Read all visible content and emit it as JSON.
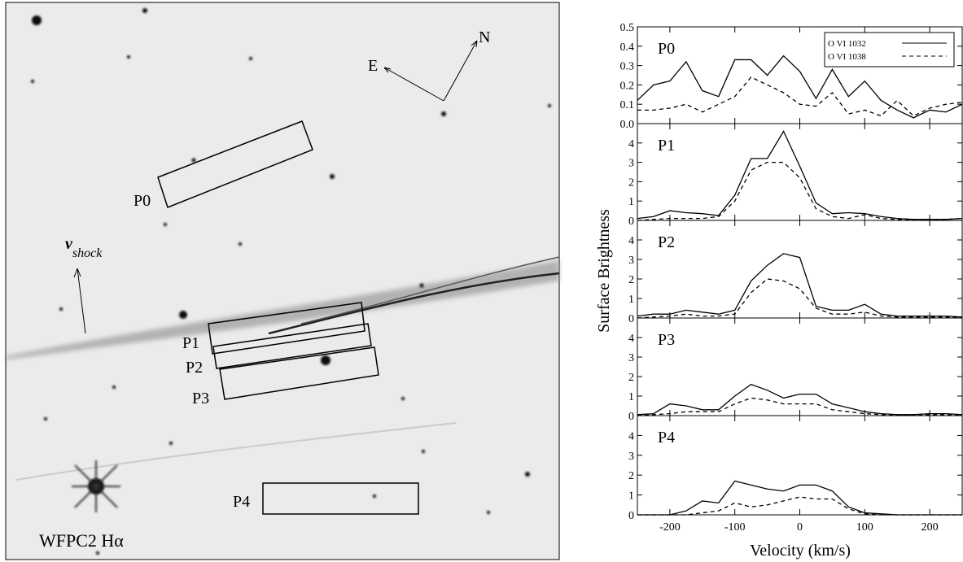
{
  "image": {
    "title": "WFPC2 Hα",
    "compass": [
      "E",
      "N"
    ],
    "shock_label": {
      "symbol": "v",
      "subscript": "shock"
    },
    "regions": [
      "P0",
      "P1",
      "P2",
      "P3",
      "P4"
    ]
  },
  "figure": {
    "ylabel": "Surface Brightness",
    "xlabel": "Velocity (km/s)"
  },
  "chart_data": [
    {
      "type": "line",
      "title": "P0",
      "legend": "upper right",
      "xlim": [
        -250,
        250
      ],
      "xticks": [
        -200,
        -100,
        0,
        100,
        200
      ],
      "ylim": [
        0,
        0.5
      ],
      "yticks": [
        {
          "value": 0,
          "label": "0.0"
        },
        0.1,
        0.2,
        0.3,
        0.4,
        0.5
      ],
      "x": [
        -250,
        -225,
        -200,
        -175,
        -150,
        -125,
        -100,
        -75,
        -50,
        -25,
        0,
        25,
        50,
        75,
        100,
        125,
        150,
        175,
        200,
        225,
        250
      ],
      "series": [
        {
          "name": "O VI 1032",
          "color": "#000000",
          "dash": "solid",
          "values": [
            0.12,
            0.2,
            0.22,
            0.32,
            0.17,
            0.14,
            0.33,
            0.33,
            0.25,
            0.35,
            0.27,
            0.13,
            0.28,
            0.14,
            0.22,
            0.12,
            0.07,
            0.03,
            0.07,
            0.06,
            0.1
          ]
        },
        {
          "name": "O VI 1038",
          "color": "#000000",
          "dash": "dashed",
          "values": [
            0.07,
            0.07,
            0.08,
            0.1,
            0.06,
            0.1,
            0.14,
            0.24,
            0.2,
            0.16,
            0.1,
            0.09,
            0.16,
            0.05,
            0.07,
            0.04,
            0.12,
            0.04,
            0.08,
            0.1,
            0.11
          ]
        }
      ]
    },
    {
      "type": "line",
      "title": "P1",
      "xlim": [
        -250,
        250
      ],
      "xticks": [
        -200,
        -100,
        0,
        100,
        200
      ],
      "ylim": [
        0,
        5
      ],
      "yticks": [
        0,
        1,
        2,
        3,
        4
      ],
      "x": [
        -250,
        -225,
        -200,
        -175,
        -150,
        -125,
        -100,
        -75,
        -50,
        -25,
        0,
        25,
        50,
        75,
        100,
        125,
        150,
        175,
        200,
        225,
        250
      ],
      "series": [
        {
          "color": "#000000",
          "dash": "solid",
          "values": [
            0.1,
            0.2,
            0.5,
            0.4,
            0.35,
            0.25,
            1.3,
            3.2,
            3.2,
            4.6,
            2.8,
            0.9,
            0.35,
            0.4,
            0.35,
            0.2,
            0.1,
            0.05,
            0.05,
            0.05,
            0.1
          ]
        },
        {
          "color": "#000000",
          "dash": "dashed",
          "values": [
            0,
            0.05,
            0.1,
            0.1,
            0.1,
            0.2,
            1.0,
            2.6,
            3.0,
            3.0,
            2.2,
            0.6,
            0.2,
            0.1,
            0.3,
            0.1,
            0.05,
            0.05,
            0.05,
            0.05,
            0.1
          ]
        }
      ]
    },
    {
      "type": "line",
      "title": "P2",
      "xlim": [
        -250,
        250
      ],
      "xticks": [
        -200,
        -100,
        0,
        100,
        200
      ],
      "ylim": [
        0,
        5
      ],
      "yticks": [
        0,
        1,
        2,
        3,
        4
      ],
      "x": [
        -250,
        -225,
        -200,
        -175,
        -150,
        -125,
        -100,
        -75,
        -50,
        -25,
        0,
        25,
        50,
        75,
        100,
        125,
        150,
        175,
        200,
        225,
        250
      ],
      "series": [
        {
          "color": "#000000",
          "dash": "solid",
          "values": [
            0.1,
            0.2,
            0.2,
            0.4,
            0.3,
            0.2,
            0.4,
            1.9,
            2.7,
            3.3,
            3.1,
            0.6,
            0.4,
            0.4,
            0.7,
            0.2,
            0.1,
            0.1,
            0.1,
            0.1,
            0.05
          ]
        },
        {
          "color": "#000000",
          "dash": "dashed",
          "values": [
            0,
            0.05,
            0.1,
            0.2,
            0.1,
            0.1,
            0.2,
            1.3,
            2.0,
            1.9,
            1.5,
            0.5,
            0.2,
            0.2,
            0.3,
            0.1,
            0.05,
            0.05,
            0.05,
            0.05,
            0.05
          ]
        }
      ]
    },
    {
      "type": "line",
      "title": "P3",
      "xlim": [
        -250,
        250
      ],
      "xticks": [
        -200,
        -100,
        0,
        100,
        200
      ],
      "ylim": [
        0,
        5
      ],
      "yticks": [
        0,
        1,
        2,
        3,
        4
      ],
      "x": [
        -250,
        -225,
        -200,
        -175,
        -150,
        -125,
        -100,
        -75,
        -50,
        -25,
        0,
        25,
        50,
        75,
        100,
        125,
        150,
        175,
        200,
        225,
        250
      ],
      "series": [
        {
          "color": "#000000",
          "dash": "solid",
          "values": [
            0.05,
            0.1,
            0.6,
            0.5,
            0.3,
            0.3,
            1.0,
            1.6,
            1.3,
            0.9,
            1.1,
            1.1,
            0.6,
            0.4,
            0.2,
            0.1,
            0.05,
            0.05,
            0.1,
            0.1,
            0.05
          ]
        },
        {
          "color": "#000000",
          "dash": "dashed",
          "values": [
            0,
            0.05,
            0.1,
            0.2,
            0.2,
            0.2,
            0.6,
            0.9,
            0.8,
            0.6,
            0.6,
            0.6,
            0.3,
            0.2,
            0.1,
            0.05,
            0.05,
            0.05,
            0.05,
            0.05,
            0.05
          ]
        }
      ]
    },
    {
      "type": "line",
      "title": "P4",
      "xlim": [
        -250,
        250
      ],
      "xticks": [
        -200,
        -100,
        0,
        100,
        200
      ],
      "ylim": [
        0,
        5
      ],
      "yticks": [
        0,
        1,
        2,
        3,
        4
      ],
      "x": [
        -250,
        -225,
        -200,
        -175,
        -150,
        -125,
        -100,
        -75,
        -50,
        -25,
        0,
        25,
        50,
        75,
        100,
        125,
        150,
        175,
        200,
        225,
        250
      ],
      "series": [
        {
          "color": "#000000",
          "dash": "solid",
          "values": [
            0,
            0,
            0,
            0.2,
            0.7,
            0.6,
            1.7,
            1.5,
            1.3,
            1.2,
            1.5,
            1.5,
            1.2,
            0.4,
            0.1,
            0.05,
            0,
            0,
            0,
            0,
            0
          ]
        },
        {
          "color": "#000000",
          "dash": "dashed",
          "values": [
            0,
            0,
            0,
            0,
            0.1,
            0.2,
            0.6,
            0.4,
            0.5,
            0.7,
            0.9,
            0.8,
            0.8,
            0.3,
            0.05,
            0,
            0,
            0,
            0,
            0,
            0
          ]
        }
      ]
    }
  ]
}
